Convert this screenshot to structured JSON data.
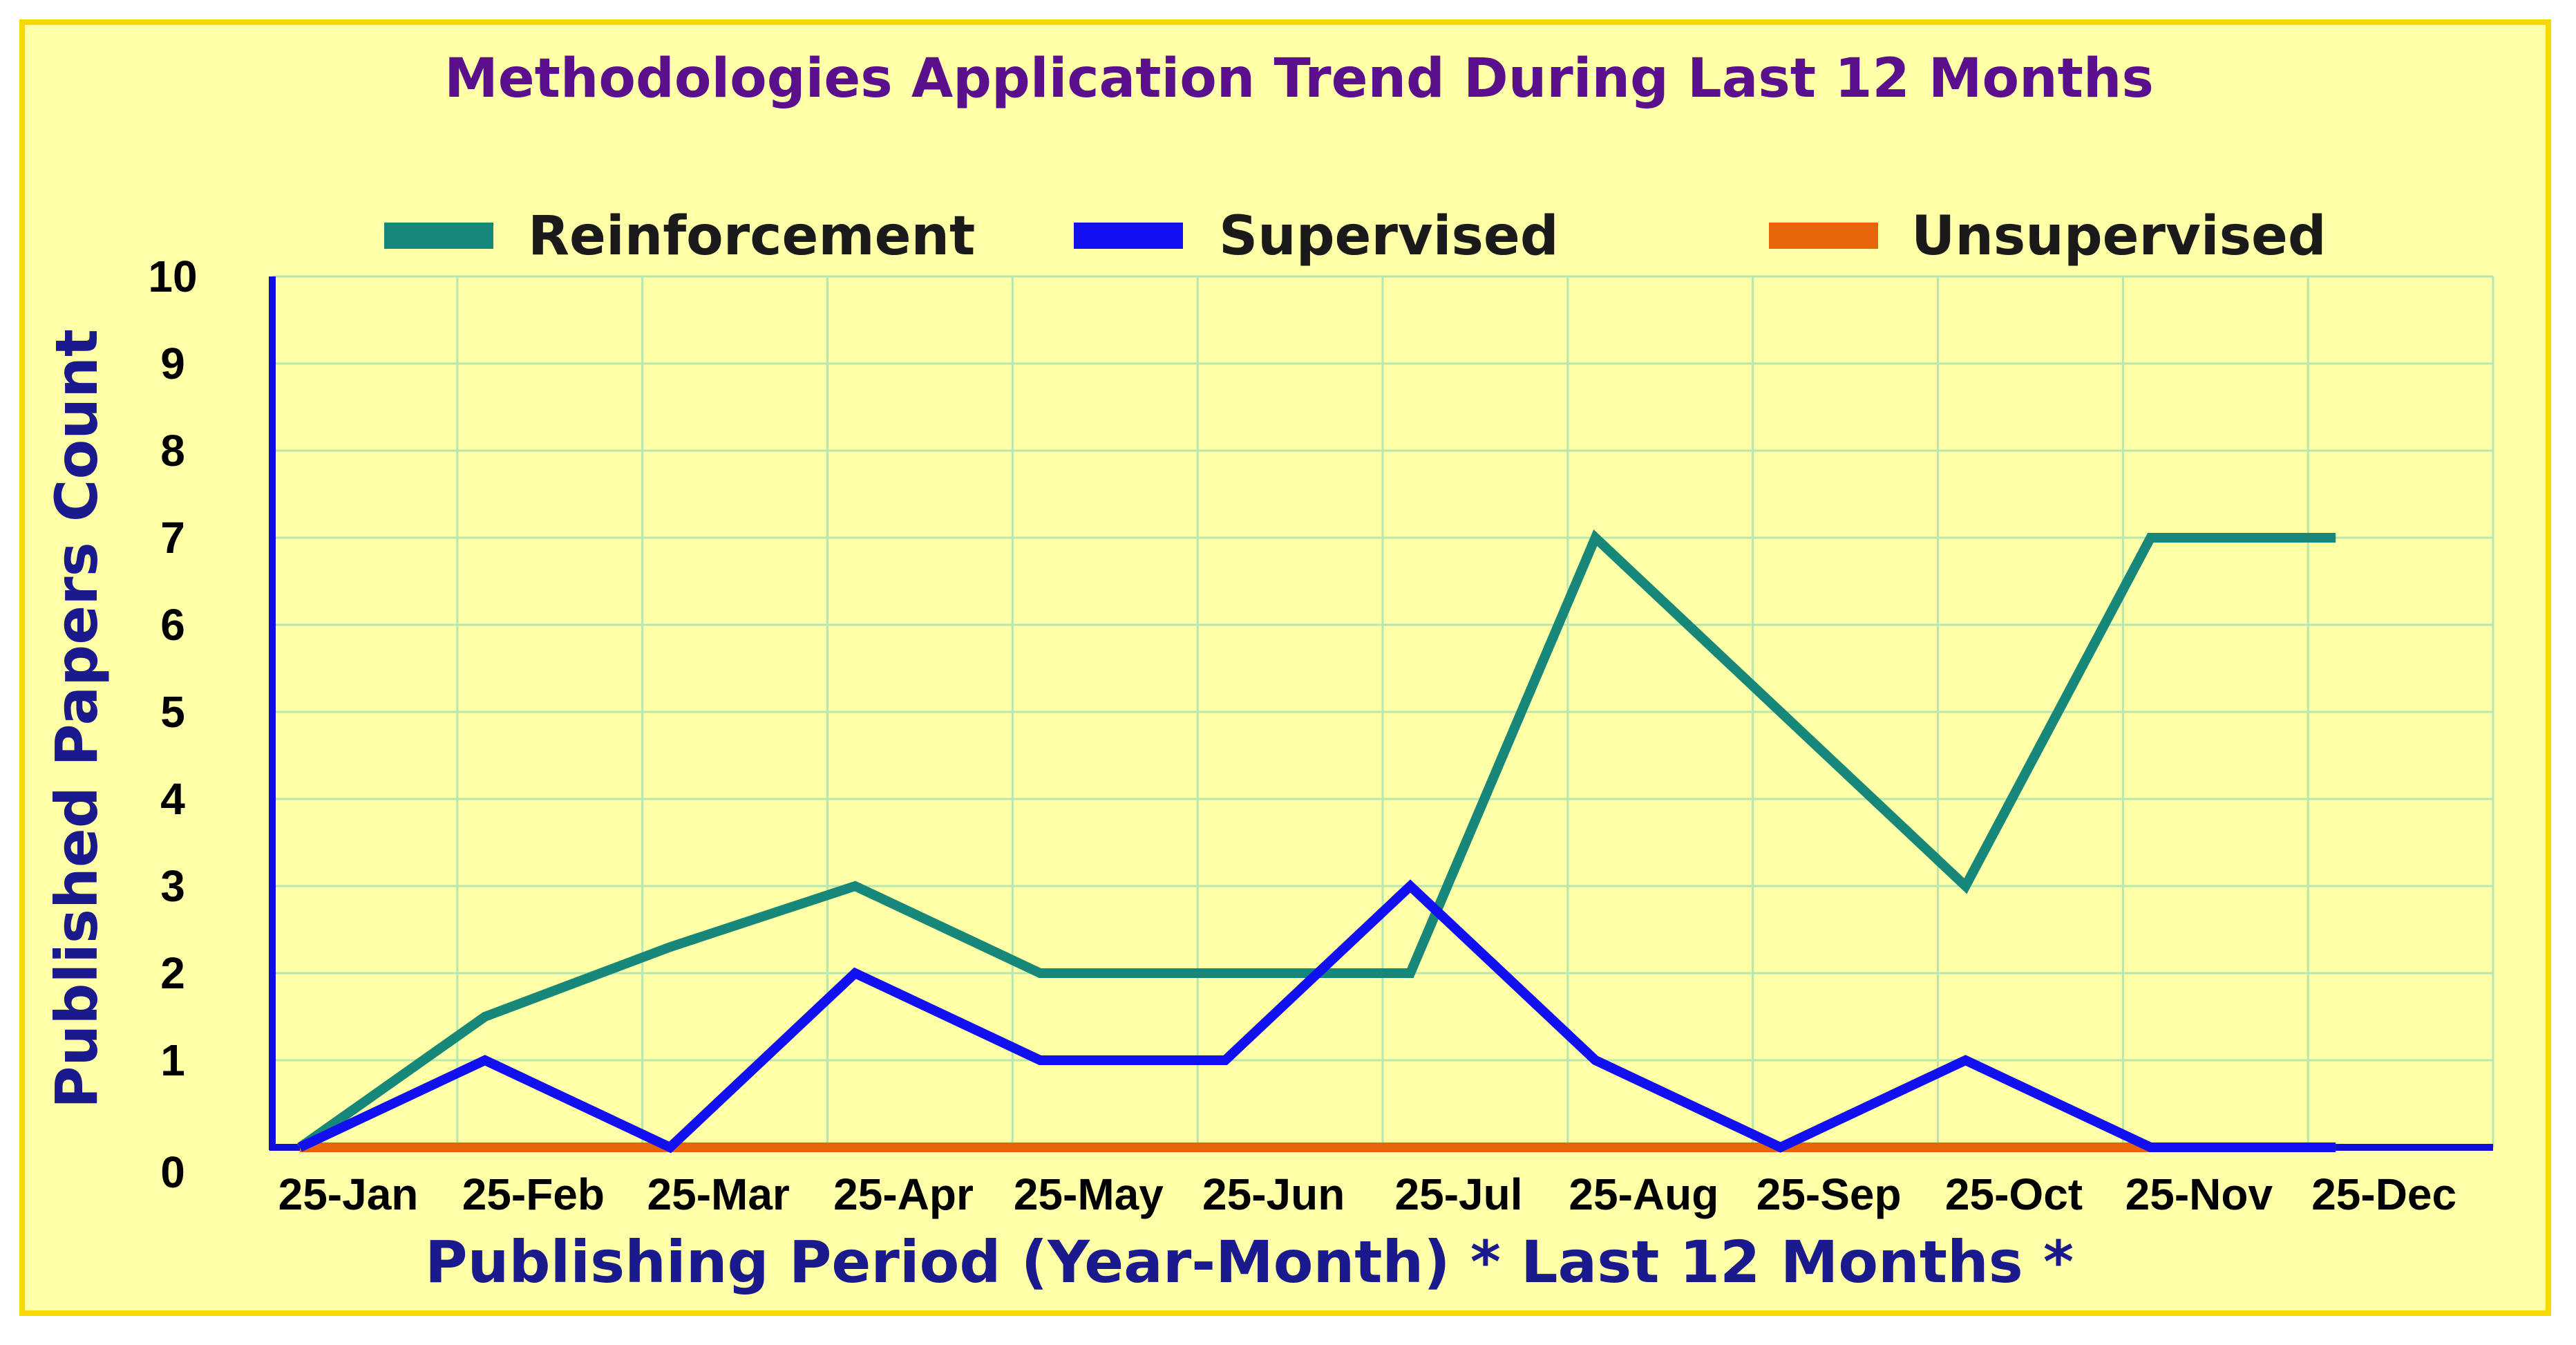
{
  "chart_data": {
    "type": "line",
    "title": "Methodologies Application Trend During Last 12 Months",
    "xlabel": "Publishing Period (Year-Month) * Last 12 Months *",
    "ylabel": "Published Papers Count",
    "categories": [
      "25-Jan",
      "25-Feb",
      "25-Mar",
      "25-Apr",
      "25-May",
      "25-Jun",
      "25-Jul",
      "25-Aug",
      "25-Sep",
      "25-Oct",
      "25-Nov",
      "25-Dec"
    ],
    "ylim": [
      0,
      10
    ],
    "yticks": [
      0,
      1,
      2,
      3,
      4,
      5,
      6,
      7,
      8,
      9,
      10
    ],
    "grid": true,
    "legend_position": "top",
    "series": [
      {
        "name": "Reinforcement",
        "color": "#17877a",
        "values": [
          0,
          1.5,
          2.3,
          3,
          2,
          2,
          2,
          7,
          5,
          3,
          7,
          7
        ]
      },
      {
        "name": "Supervised",
        "color": "#1010f0",
        "values": [
          0,
          1,
          0,
          2,
          1,
          1,
          3,
          1,
          0,
          1,
          0,
          0
        ]
      },
      {
        "name": "Unsupervised",
        "color": "#e8640a",
        "values": [
          0,
          0,
          0,
          0,
          0,
          0,
          0,
          0,
          0,
          0,
          0,
          0
        ]
      }
    ],
    "axis_color": "#1010d8",
    "grid_color": "#b7e6b0",
    "background_color": "#ffffa8",
    "border_color": "#f5d800"
  }
}
